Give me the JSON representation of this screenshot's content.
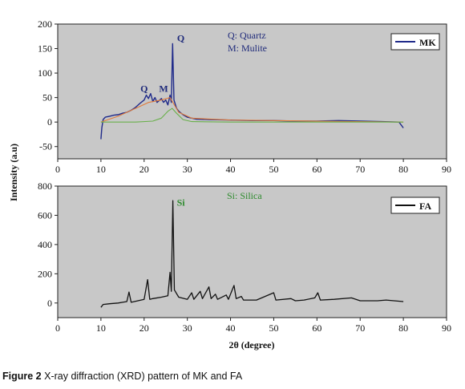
{
  "chart_data": [
    {
      "type": "line",
      "panel": "top",
      "xlim": [
        0,
        90
      ],
      "ylim": [
        -75,
        200
      ],
      "x_ticks": [
        0,
        10,
        20,
        30,
        40,
        50,
        60,
        70,
        80,
        90
      ],
      "y_ticks": [
        -50,
        0,
        50,
        100,
        150,
        200
      ],
      "legend": {
        "label": "MK",
        "placement": "top-right"
      },
      "key_text": [
        "Q:  Quartz",
        "M:  Mulite"
      ],
      "annotations": [
        {
          "text": "Q",
          "x": 20.0,
          "y": 62
        },
        {
          "text": "M",
          "x": 24.5,
          "y": 62
        },
        {
          "text": "Q",
          "x": 28.5,
          "y": 165
        }
      ],
      "colors": {
        "series": "#1f2a8a",
        "fit": "#e07a3a",
        "amorphous": "#6ab04c",
        "panel_bg": "#c8c8c8",
        "text": "#1f2a7a"
      },
      "series": [
        {
          "name": "MK",
          "points": [
            [
              10.0,
              -35
            ],
            [
              10.2,
              -12
            ],
            [
              10.5,
              5
            ],
            [
              11,
              10
            ],
            [
              12,
              12
            ],
            [
              13,
              14
            ],
            [
              14,
              15
            ],
            [
              15,
              18
            ],
            [
              16,
              20
            ],
            [
              17,
              24
            ],
            [
              18,
              30
            ],
            [
              19,
              38
            ],
            [
              20,
              45
            ],
            [
              20.5,
              55
            ],
            [
              21,
              48
            ],
            [
              21.5,
              58
            ],
            [
              22,
              42
            ],
            [
              22.5,
              50
            ],
            [
              23,
              40
            ],
            [
              24,
              48
            ],
            [
              24.5,
              40
            ],
            [
              25,
              45
            ],
            [
              25.5,
              35
            ],
            [
              26,
              55
            ],
            [
              26.3,
              40
            ],
            [
              26.6,
              160
            ],
            [
              26.9,
              45
            ],
            [
              27.5,
              28
            ],
            [
              28,
              22
            ],
            [
              29,
              15
            ],
            [
              30,
              10
            ],
            [
              32,
              6
            ],
            [
              35,
              5
            ],
            [
              40,
              4
            ],
            [
              45,
              3
            ],
            [
              50,
              3
            ],
            [
              55,
              2
            ],
            [
              60,
              2
            ],
            [
              65,
              3
            ],
            [
              70,
              2
            ],
            [
              75,
              1
            ],
            [
              79,
              0
            ],
            [
              80,
              -12
            ]
          ]
        },
        {
          "name": "fit",
          "points": [
            [
              10,
              0
            ],
            [
              14,
              12
            ],
            [
              18,
              28
            ],
            [
              21,
              40
            ],
            [
              24,
              45
            ],
            [
              26,
              50
            ],
            [
              28,
              20
            ],
            [
              31,
              8
            ],
            [
              40,
              4
            ],
            [
              60,
              2
            ],
            [
              80,
              0
            ]
          ]
        },
        {
          "name": "amorphous",
          "points": [
            [
              10,
              0
            ],
            [
              18,
              0
            ],
            [
              22,
              2
            ],
            [
              24,
              8
            ],
            [
              25.5,
              22
            ],
            [
              26.5,
              28
            ],
            [
              27.5,
              18
            ],
            [
              29,
              5
            ],
            [
              31,
              1
            ],
            [
              40,
              0
            ],
            [
              80,
              0
            ]
          ]
        }
      ]
    },
    {
      "type": "line",
      "panel": "bottom",
      "xlim": [
        0,
        90
      ],
      "ylim": [
        -100,
        800
      ],
      "x_ticks": [
        0,
        10,
        20,
        30,
        40,
        50,
        60,
        70,
        80,
        90
      ],
      "y_ticks": [
        0,
        200,
        400,
        600,
        800
      ],
      "xlabel": "2θ (degree)",
      "ylabel": "Intensity (a.u)",
      "legend": {
        "label": "FA",
        "placement": "top-right"
      },
      "key_text": [
        "Si:  Silica"
      ],
      "annotations": [
        {
          "text": "Si",
          "x": 28.5,
          "y": 665
        }
      ],
      "colors": {
        "series": "#111111",
        "panel_bg": "#c8c8c8",
        "annotation": "#2e8b2e"
      },
      "series": [
        {
          "name": "FA",
          "points": [
            [
              10,
              -30
            ],
            [
              10.5,
              -10
            ],
            [
              12,
              -5
            ],
            [
              14,
              0
            ],
            [
              15,
              5
            ],
            [
              16,
              10
            ],
            [
              16.5,
              75
            ],
            [
              17,
              5
            ],
            [
              20,
              25
            ],
            [
              20.8,
              160
            ],
            [
              21.3,
              25
            ],
            [
              22,
              30
            ],
            [
              24,
              40
            ],
            [
              25.5,
              50
            ],
            [
              26.0,
              210
            ],
            [
              26.3,
              80
            ],
            [
              26.65,
              700
            ],
            [
              27,
              90
            ],
            [
              28,
              40
            ],
            [
              30,
              25
            ],
            [
              31,
              70
            ],
            [
              31.5,
              25
            ],
            [
              33,
              80
            ],
            [
              33.5,
              30
            ],
            [
              35,
              110
            ],
            [
              35.5,
              30
            ],
            [
              36.5,
              60
            ],
            [
              37,
              25
            ],
            [
              39,
              55
            ],
            [
              39.5,
              25
            ],
            [
              40.8,
              120
            ],
            [
              41.3,
              30
            ],
            [
              42.5,
              45
            ],
            [
              43,
              20
            ],
            [
              46,
              20
            ],
            [
              50,
              70
            ],
            [
              50.5,
              20
            ],
            [
              54,
              30
            ],
            [
              55,
              15
            ],
            [
              57,
              20
            ],
            [
              59.5,
              35
            ],
            [
              60.2,
              70
            ],
            [
              60.8,
              20
            ],
            [
              64,
              25
            ],
            [
              68,
              35
            ],
            [
              70,
              15
            ],
            [
              74,
              15
            ],
            [
              76,
              20
            ],
            [
              80,
              10
            ]
          ]
        }
      ]
    }
  ],
  "caption": {
    "label": "Figure 2",
    "text": "X-ray diffraction (XRD) pattern of MK and FA"
  }
}
